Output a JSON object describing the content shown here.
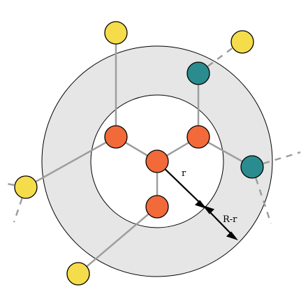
{
  "labels": {
    "inner_radius": "r",
    "band_width": "R-r"
  },
  "colors": {
    "outer_ring_fill": "#e6e6e6",
    "inner_disk_fill": "#ffffff",
    "ring_stroke": "#000000",
    "edge": "#9e9e9e",
    "node_center_and_core": "#f26a3a",
    "node_band": "#2a8c8e",
    "node_outside": "#f5dc4a",
    "arrow": "#000000"
  },
  "legend": null
}
